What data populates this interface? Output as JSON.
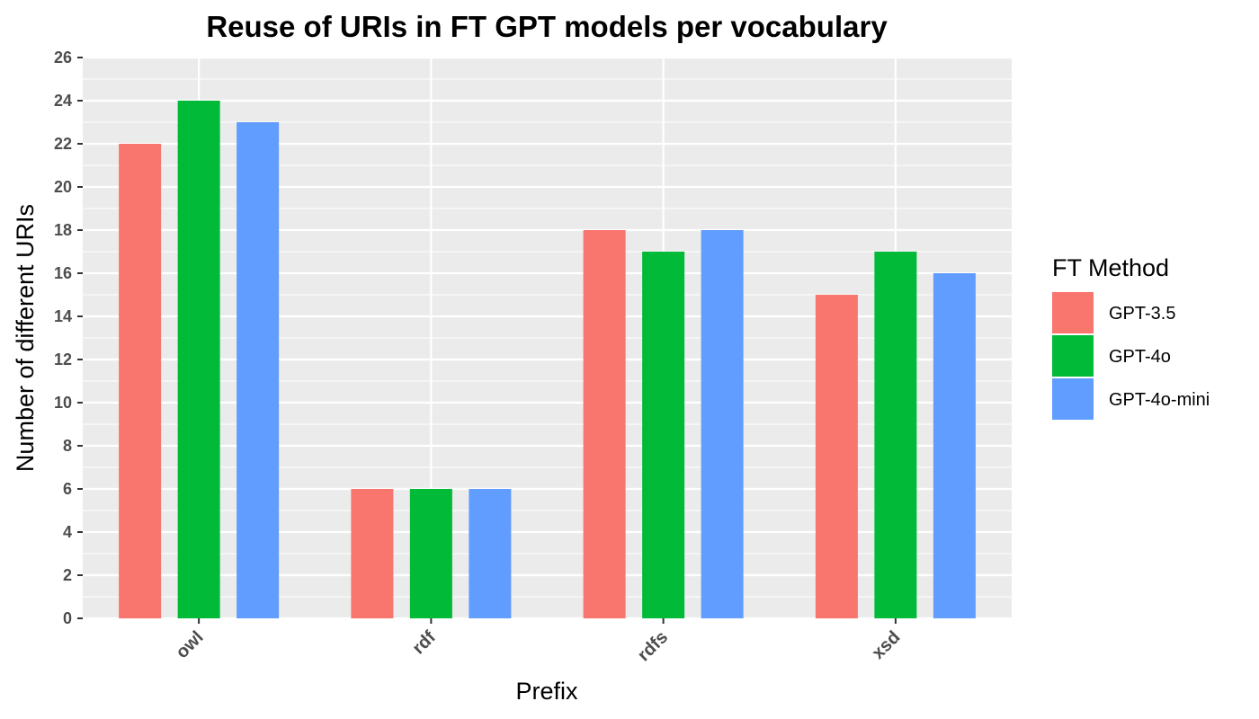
{
  "chart_data": {
    "type": "bar",
    "title": "Reuse of URIs in FT GPT models per vocabulary",
    "xlabel": "Prefix",
    "ylabel": "Number of different URIs",
    "categories": [
      "owl",
      "rdf",
      "rdfs",
      "xsd"
    ],
    "series": [
      {
        "name": "GPT-3.5",
        "color": "#F8766D",
        "values": [
          22,
          6,
          18,
          15
        ]
      },
      {
        "name": "GPT-4o",
        "color": "#00BA38",
        "values": [
          24,
          6,
          17,
          17
        ]
      },
      {
        "name": "GPT-4o-mini",
        "color": "#619CFF",
        "values": [
          23,
          6,
          18,
          16
        ]
      }
    ],
    "ylim": [
      0,
      26
    ],
    "yticks": [
      "0",
      "2",
      "4",
      "6",
      "8",
      "10",
      "12",
      "14",
      "16",
      "18",
      "20",
      "22",
      "24",
      "26"
    ],
    "legend_title": "FT Method",
    "legend_position": "right",
    "grid": true,
    "panel_background": "#EBEBEB"
  }
}
